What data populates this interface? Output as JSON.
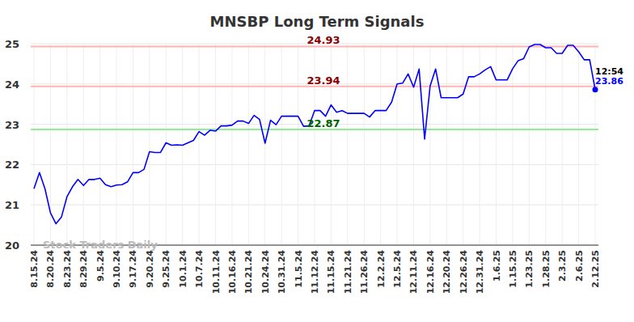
{
  "chart_data": {
    "type": "line",
    "title": "MNSBP Long Term Signals",
    "watermark": "Stock Traders Daily",
    "categories": [
      "8.15.24",
      null,
      null,
      "8.20.24",
      null,
      null,
      "8.23.24",
      null,
      null,
      "8.29.24",
      null,
      null,
      "9.5.24",
      null,
      null,
      "9.10.24",
      null,
      null,
      "9.17.24",
      null,
      null,
      "9.20.24",
      null,
      null,
      "9.25.24",
      null,
      null,
      "10.1.24",
      null,
      null,
      "10.7.24",
      null,
      null,
      "10.11.24",
      null,
      null,
      "10.16.24",
      null,
      null,
      "10.21.24",
      null,
      null,
      "10.24.24",
      null,
      null,
      "10.31.24",
      null,
      null,
      "11.5.24",
      null,
      null,
      "11.12.24",
      null,
      null,
      "11.15.24",
      null,
      null,
      "11.21.24",
      null,
      null,
      "11.26.24",
      null,
      null,
      "12.2.24",
      null,
      null,
      "12.5.24",
      null,
      null,
      "12.11.24",
      null,
      null,
      "12.16.24",
      null,
      null,
      "12.20.24",
      null,
      null,
      "12.26.24",
      null,
      null,
      "12.31.24",
      null,
      null,
      "1.6.25",
      null,
      null,
      "1.15.25",
      null,
      null,
      "1.23.25",
      null,
      null,
      "1.28.25",
      null,
      null,
      "2.3.25",
      null,
      null,
      "2.6.25",
      null,
      null,
      "2.12.25"
    ],
    "series": [
      {
        "name": "MNSBP",
        "color": "#0000ff",
        "values": [
          21.4,
          21.8,
          21.4,
          20.8,
          20.53,
          20.7,
          21.2,
          21.45,
          21.63,
          21.48,
          21.63,
          21.63,
          21.66,
          21.5,
          21.45,
          21.49,
          21.5,
          21.57,
          21.8,
          21.8,
          21.88,
          22.32,
          22.3,
          22.3,
          22.54,
          22.48,
          22.49,
          22.48,
          22.54,
          22.6,
          22.82,
          22.73,
          22.85,
          22.83,
          22.96,
          22.96,
          22.98,
          23.08,
          23.08,
          23.02,
          23.22,
          23.12,
          22.53,
          23.1,
          22.99,
          23.2,
          23.2,
          23.2,
          23.2,
          22.95,
          22.96,
          23.34,
          23.34,
          23.2,
          23.48,
          23.3,
          23.34,
          23.27,
          23.27,
          23.27,
          23.27,
          23.18,
          23.34,
          23.34,
          23.34,
          23.55,
          24.0,
          24.02,
          24.25,
          23.92,
          24.37,
          22.63,
          23.95,
          24.37,
          23.66,
          23.66,
          23.66,
          23.66,
          23.75,
          24.18,
          24.18,
          24.25,
          24.35,
          24.43,
          24.1,
          24.1,
          24.1,
          24.38,
          24.58,
          24.63,
          24.92,
          24.98,
          24.98,
          24.9,
          24.9,
          24.76,
          24.76,
          24.96,
          24.96,
          24.8,
          24.6,
          24.6,
          23.86
        ]
      }
    ],
    "reference_lines": [
      {
        "value": 24.93,
        "color": "#ffb3b3",
        "label_color": "#8b0000"
      },
      {
        "value": 23.94,
        "color": "#ffb3b3",
        "label_color": "#8b0000"
      },
      {
        "value": 22.87,
        "color": "#90ee90",
        "label_color": "#006400"
      }
    ],
    "last_time": "12:54",
    "ylim": [
      20,
      25
    ],
    "yticks": [
      20,
      21,
      22,
      23,
      24,
      25
    ],
    "grid": true
  }
}
